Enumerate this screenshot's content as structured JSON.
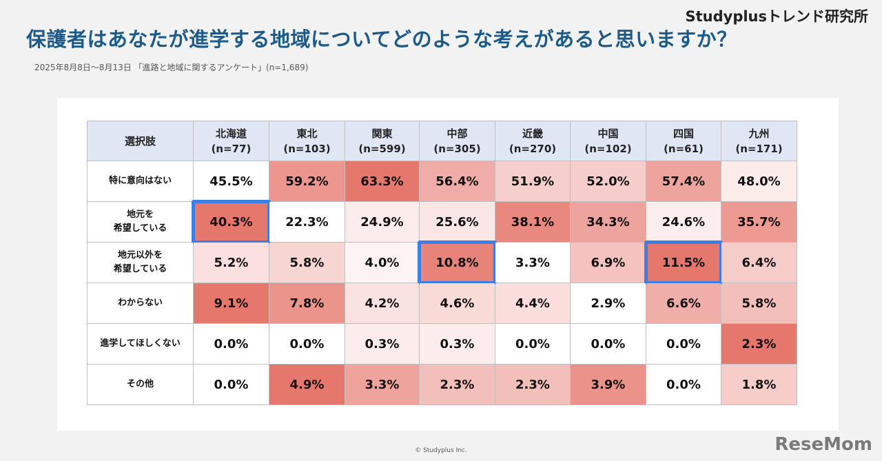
{
  "brand": "Studyplusトレンド研究所",
  "title": "保護者はあなたが進学する地域についてどのような考えがあると思いますか？",
  "subtitle": "2025年8月8日～8月13日 「進路と地域に関するアンケート」(n=1,689)",
  "copyright": "© Studyplus Inc.",
  "logo": "ReseMom",
  "colors": {
    "low": "#ffffff",
    "high": "#e6776d",
    "highlight": "#3b7fe6",
    "header_bg": "#dfe6f4",
    "title": "#1c5a8c"
  },
  "chart_data": {
    "type": "heatmap",
    "corner_label": "選択肢",
    "columns": [
      {
        "name": "北海道",
        "n": "(n=77)"
      },
      {
        "name": "東北",
        "n": "(n=103)"
      },
      {
        "name": "関東",
        "n": "(n=599)"
      },
      {
        "name": "中部",
        "n": "(n=305)"
      },
      {
        "name": "近畿",
        "n": "(n=270)"
      },
      {
        "name": "中国",
        "n": "(n=102)"
      },
      {
        "name": "四国",
        "n": "(n=61)"
      },
      {
        "name": "九州",
        "n": "(n=171)"
      }
    ],
    "rows": [
      {
        "label": [
          "特に意向はない"
        ],
        "values": [
          45.5,
          59.2,
          63.3,
          56.4,
          51.9,
          52.0,
          57.4,
          48.0
        ]
      },
      {
        "label": [
          "地元を",
          "希望している"
        ],
        "values": [
          40.3,
          22.3,
          24.9,
          25.6,
          38.1,
          34.3,
          24.6,
          35.7
        ]
      },
      {
        "label": [
          "地元以外を",
          "希望している"
        ],
        "values": [
          5.2,
          5.8,
          4.0,
          10.8,
          3.3,
          6.9,
          11.5,
          6.4
        ]
      },
      {
        "label": [
          "わからない"
        ],
        "values": [
          9.1,
          7.8,
          4.2,
          4.6,
          4.4,
          2.9,
          6.6,
          5.8
        ]
      },
      {
        "label": [
          "進学してほしくない"
        ],
        "values": [
          0.0,
          0.0,
          0.3,
          0.3,
          0.0,
          0.0,
          0.0,
          2.3
        ]
      },
      {
        "label": [
          "その他"
        ],
        "values": [
          0.0,
          4.9,
          3.3,
          2.3,
          2.3,
          3.9,
          0.0,
          1.8
        ]
      }
    ],
    "unit": "%",
    "color_scale": "per-row min-max",
    "highlighted": [
      {
        "row": 1,
        "col": 0
      },
      {
        "row": 2,
        "col": 3
      },
      {
        "row": 2,
        "col": 6
      }
    ]
  }
}
